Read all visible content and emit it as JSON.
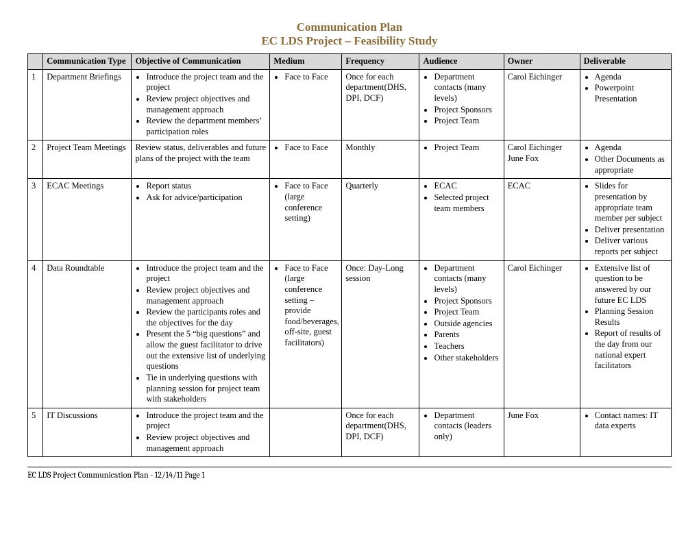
{
  "colors": {
    "title": "#8a6d3b",
    "header_bg": "#d9d9d9",
    "border": "#000000",
    "bg": "#ffffff"
  },
  "title": {
    "line1": "Communication Plan",
    "line2": "EC LDS Project – Feasibility Study"
  },
  "headers": {
    "num": "",
    "type": "Communication Type",
    "objective": "Objective of Communication",
    "medium": "Medium",
    "frequency": "Frequency",
    "audience": "Audience",
    "owner": "Owner",
    "deliverable": "Deliverable"
  },
  "rows": [
    {
      "num": "1",
      "type": "Department Briefings",
      "objective": [
        "Introduce the project team and the project",
        "Review project objectives and management approach",
        "Review the department members’ participation roles"
      ],
      "medium": [
        "Face to Face"
      ],
      "frequency": "Once for each department(DHS, DPI, DCF)",
      "audience": [
        "Department contacts (many levels)",
        "Project Sponsors",
        "Project Team"
      ],
      "owner": "Carol Eichinger",
      "deliverable": [
        "Agenda",
        "Powerpoint Presentation"
      ]
    },
    {
      "num": "2",
      "type": "Project Team Meetings",
      "objective_text": "Review status, deliverables and future plans of the project with the team",
      "medium": [
        "Face to Face"
      ],
      "frequency": "Monthly",
      "audience": [
        "Project Team"
      ],
      "owner": "Carol Eichinger June Fox",
      "deliverable": [
        "Agenda",
        "Other Documents as appropriate"
      ]
    },
    {
      "num": "3",
      "type": "ECAC Meetings",
      "objective": [
        "Report status",
        "Ask for advice/participation"
      ],
      "medium": [
        "Face to Face (large conference setting)"
      ],
      "frequency": "Quarterly",
      "audience": [
        "ECAC",
        "Selected project team members"
      ],
      "owner": "ECAC",
      "deliverable": [
        "Slides for presentation by appropriate team member per subject",
        "Deliver presentation",
        "Deliver various reports per subject"
      ]
    },
    {
      "num": "4",
      "type": "Data Roundtable",
      "objective": [
        "Introduce the project team and the project",
        "Review project objectives and management approach",
        "Review the participants roles and the objectives for the day",
        "Present the 5 “big questions” and allow the guest facilitator to drive out the extensive list of underlying questions",
        "Tie in underlying questions with planning session for project team with stakeholders"
      ],
      "medium": [
        "Face to Face (large conference setting – provide food/beverages, off-site, guest facilitators)"
      ],
      "frequency": "Once:  Day-Long session",
      "audience": [
        "Department contacts (many levels)",
        "Project Sponsors",
        "Project Team",
        "Outside agencies",
        "Parents",
        "Teachers",
        "Other stakeholders"
      ],
      "owner": "Carol Eichinger",
      "deliverable": [
        "Extensive list of question to be answered by our future EC LDS",
        "Planning Session Results",
        "Report of results of the day from our national expert facilitators"
      ]
    },
    {
      "num": "5",
      "type": "IT Discussions",
      "objective": [
        "Introduce the project team and the project",
        "Review project objectives and management approach"
      ],
      "medium_text": "",
      "frequency": "Once for each department(DHS, DPI, DCF)",
      "audience": [
        "Department contacts (leaders only)"
      ],
      "owner": "June Fox",
      "deliverable": [
        "Contact names: IT data experts"
      ]
    }
  ],
  "footer": "EC LDS Project Communication Plan - 12/14/11       Page 1"
}
